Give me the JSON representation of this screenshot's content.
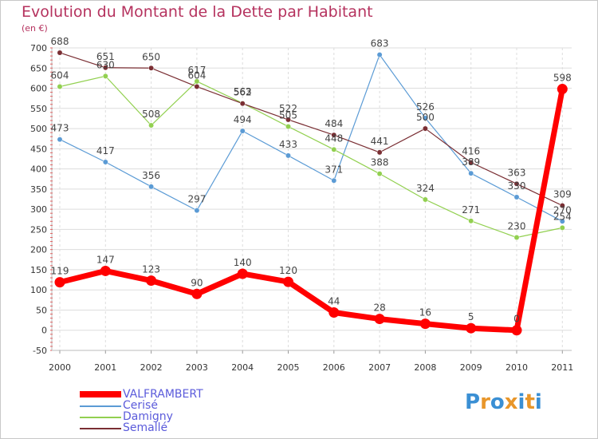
{
  "title": "Evolution du Montant de la Dette par Habitant",
  "unit_label": "(en €)",
  "logo": {
    "text": "Proxiti",
    "letters": [
      "P",
      "r",
      "o",
      "x",
      "i",
      "t",
      "i"
    ],
    "colors": [
      "#3a8fd4",
      "#e8962a",
      "#3a8fd4",
      "#e8962a",
      "#3a8fd4",
      "#e8962a",
      "#3a8fd4"
    ]
  },
  "chart_data": {
    "type": "line",
    "title": "Evolution du Montant de la Dette par Habitant",
    "ylabel": "(en €)",
    "xlabel": "",
    "ylim": [
      -50,
      700
    ],
    "yticks": [
      -50,
      0,
      50,
      100,
      150,
      200,
      250,
      300,
      350,
      400,
      450,
      500,
      550,
      600,
      650,
      700
    ],
    "x": [
      "2000",
      "2001",
      "2002",
      "2003",
      "2004",
      "2005",
      "2006",
      "2007",
      "2008",
      "2009",
      "2010",
      "2011"
    ],
    "grid": true,
    "legend_position": "bottom-left",
    "series": [
      {
        "name": "VALFRAMBERT",
        "color": "#ff0000",
        "values": [
          119,
          147,
          123,
          90,
          140,
          120,
          44,
          28,
          16,
          5,
          0,
          598
        ],
        "labels": [
          "119",
          "147",
          "123",
          "90",
          "140",
          "120",
          "44",
          "28",
          "16",
          "5",
          "0",
          "598"
        ],
        "emphasis": true
      },
      {
        "name": "Cerisé",
        "color": "#5b9bd5",
        "values": [
          473,
          417,
          356,
          297,
          494,
          433,
          371,
          683,
          526,
          389,
          330,
          270
        ],
        "labels": [
          "473",
          "417",
          "356",
          "297",
          "494",
          "433",
          "371",
          "683",
          "526",
          "389",
          "330",
          "270"
        ],
        "emphasis": false
      },
      {
        "name": "Damigny",
        "color": "#92d050",
        "values": [
          604,
          630,
          508,
          617,
          563,
          505,
          448,
          388,
          324,
          271,
          230,
          254
        ],
        "labels": [
          "604",
          "630",
          "508",
          "617",
          "563",
          "505",
          "448",
          "388",
          "324",
          "271",
          "230",
          "254"
        ],
        "emphasis": false
      },
      {
        "name": "Semallé",
        "color": "#7a2e33",
        "values": [
          688,
          651,
          650,
          604,
          562,
          522,
          484,
          441,
          500,
          416,
          363,
          309
        ],
        "labels": [
          "688",
          "651",
          "650",
          "604",
          "562",
          "522",
          "484",
          "441",
          "500",
          "416",
          "363",
          "309"
        ],
        "emphasis": false
      }
    ]
  }
}
